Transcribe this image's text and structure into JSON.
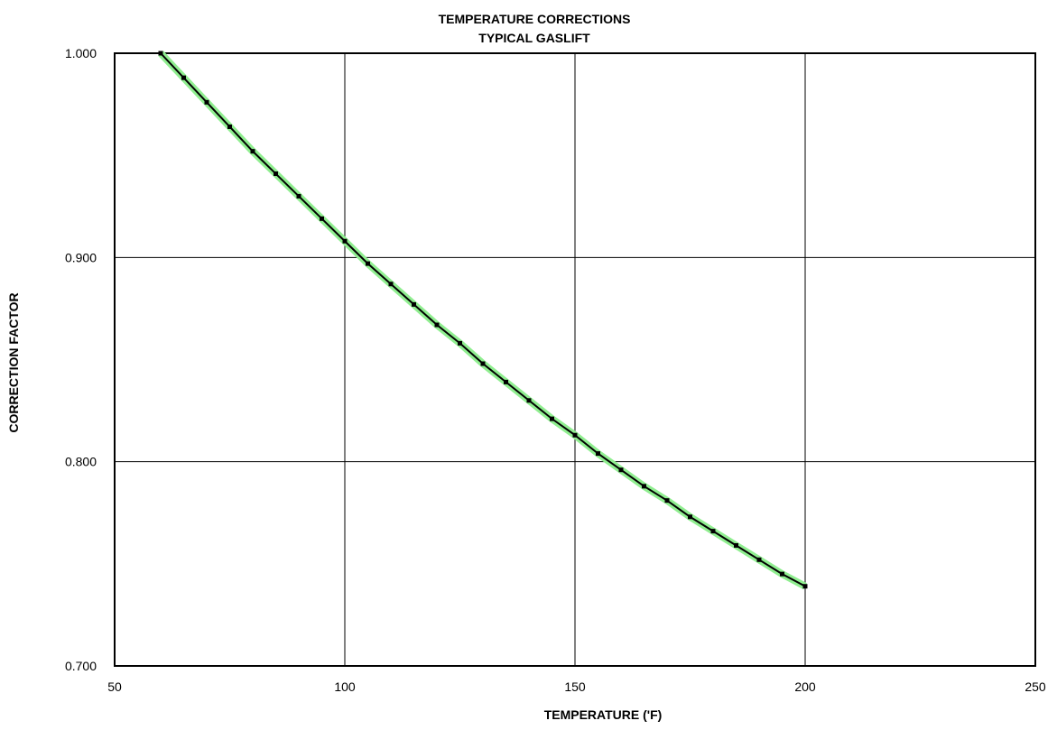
{
  "chart_data": {
    "type": "line",
    "title": "TEMPERATURE CORRECTIONS",
    "subtitle": "TYPICAL  GASLIFT",
    "x_label": "TEMPERATURE ('F)",
    "y_label": "CORRECTION FACTOR",
    "x": [
      60,
      65,
      70,
      75,
      80,
      85,
      90,
      95,
      100,
      105,
      110,
      115,
      120,
      125,
      130,
      135,
      140,
      145,
      150,
      155,
      160,
      165,
      170,
      175,
      180,
      185,
      190,
      195,
      200
    ],
    "values": [
      1.0,
      0.988,
      0.976,
      0.964,
      0.952,
      0.941,
      0.93,
      0.919,
      0.908,
      0.897,
      0.887,
      0.877,
      0.867,
      0.858,
      0.848,
      0.839,
      0.83,
      0.821,
      0.813,
      0.804,
      0.796,
      0.788,
      0.781,
      0.773,
      0.766,
      0.759,
      0.752,
      0.745,
      0.739
    ],
    "color": "#000000",
    "line_color": "#90ee90",
    "xlim": [
      50,
      250
    ],
    "xticks": [
      50,
      100,
      150,
      200,
      250
    ],
    "ylim": [
      0.7,
      1.0
    ],
    "yticks": [
      {
        "value": 0.7,
        "label": "0.700"
      },
      {
        "value": 0.8,
        "label": "0.800"
      },
      {
        "value": 0.9,
        "label": "0.900"
      },
      {
        "value": 1.0,
        "label": "1.000"
      }
    ],
    "grid": true
  }
}
